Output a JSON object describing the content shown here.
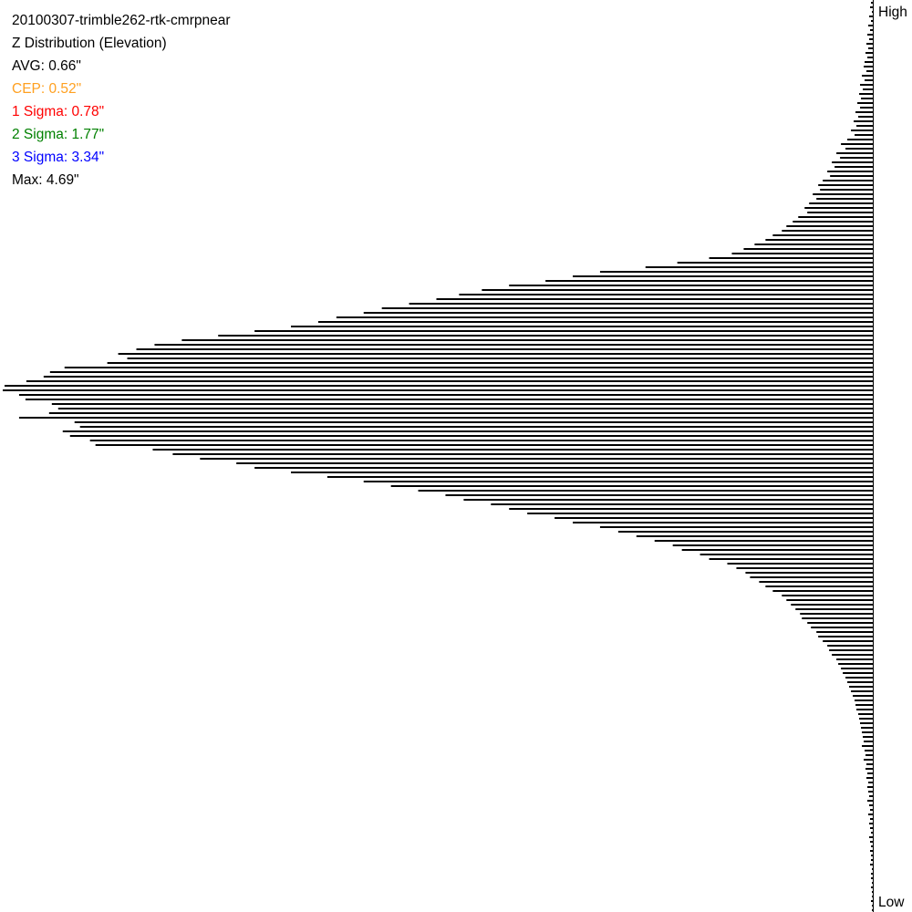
{
  "chart_data": {
    "type": "bar",
    "orientation": "horizontal",
    "title": "20100307-trimble262-rtk-cmrpnear",
    "subtitle": "Z Distribution (Elevation)",
    "axis_top_label": "High",
    "axis_bottom_label": "Low",
    "grid": false,
    "bar_color": "#000000",
    "xlim": [
      0,
      960
    ],
    "values": [
      2,
      3,
      1,
      4,
      2,
      5,
      3,
      6,
      4,
      7,
      5,
      8,
      6,
      9,
      10,
      7,
      12,
      9,
      14,
      11,
      15,
      13,
      17,
      14,
      19,
      16,
      21,
      18,
      24,
      20,
      28,
      35,
      30,
      40,
      36,
      45,
      42,
      50,
      47,
      55,
      60,
      58,
      66,
      62,
      70,
      75,
      72,
      82,
      88,
      95,
      100,
      110,
      118,
      130,
      142,
      155,
      180,
      215,
      250,
      300,
      330,
      360,
      400,
      430,
      455,
      480,
      510,
      540,
      560,
      590,
      610,
      640,
      680,
      720,
      760,
      790,
      810,
      830,
      820,
      842,
      889,
      905,
      912,
      931,
      955,
      957,
      939,
      932,
      903,
      896,
      906,
      939,
      878,
      872,
      891,
      883,
      861,
      855,
      792,
      770,
      740,
      700,
      680,
      640,
      600,
      560,
      530,
      500,
      470,
      450,
      420,
      400,
      380,
      350,
      330,
      300,
      280,
      260,
      240,
      220,
      210,
      190,
      180,
      160,
      150,
      140,
      135,
      125,
      118,
      110,
      100,
      95,
      90,
      85,
      80,
      78,
      72,
      68,
      62,
      60,
      55,
      50,
      48,
      45,
      40,
      38,
      35,
      33,
      30,
      28,
      26,
      24,
      22,
      20,
      19,
      18,
      16,
      15,
      14,
      13,
      12,
      11,
      10,
      12,
      9,
      8,
      10,
      7,
      8,
      6,
      7,
      5,
      6,
      5,
      4,
      6,
      4,
      3,
      5,
      3,
      4,
      3,
      2,
      4,
      3,
      2,
      3,
      2,
      2,
      3,
      1,
      2,
      2,
      1,
      2,
      1,
      1,
      2,
      1,
      1
    ]
  },
  "stats": {
    "avg": {
      "label": "AVG: 0.66\"",
      "color": "#000000"
    },
    "cep": {
      "label": "CEP: 0.52\"",
      "color": "#ffa020"
    },
    "sigma1": {
      "label": "1 Sigma: 0.78\"",
      "color": "#ff0000"
    },
    "sigma2": {
      "label": "2 Sigma: 1.77\"",
      "color": "#008000"
    },
    "sigma3": {
      "label": "3 Sigma: 3.34\"",
      "color": "#0000ff"
    },
    "max": {
      "label": "Max: 4.69\"",
      "color": "#000000"
    }
  }
}
